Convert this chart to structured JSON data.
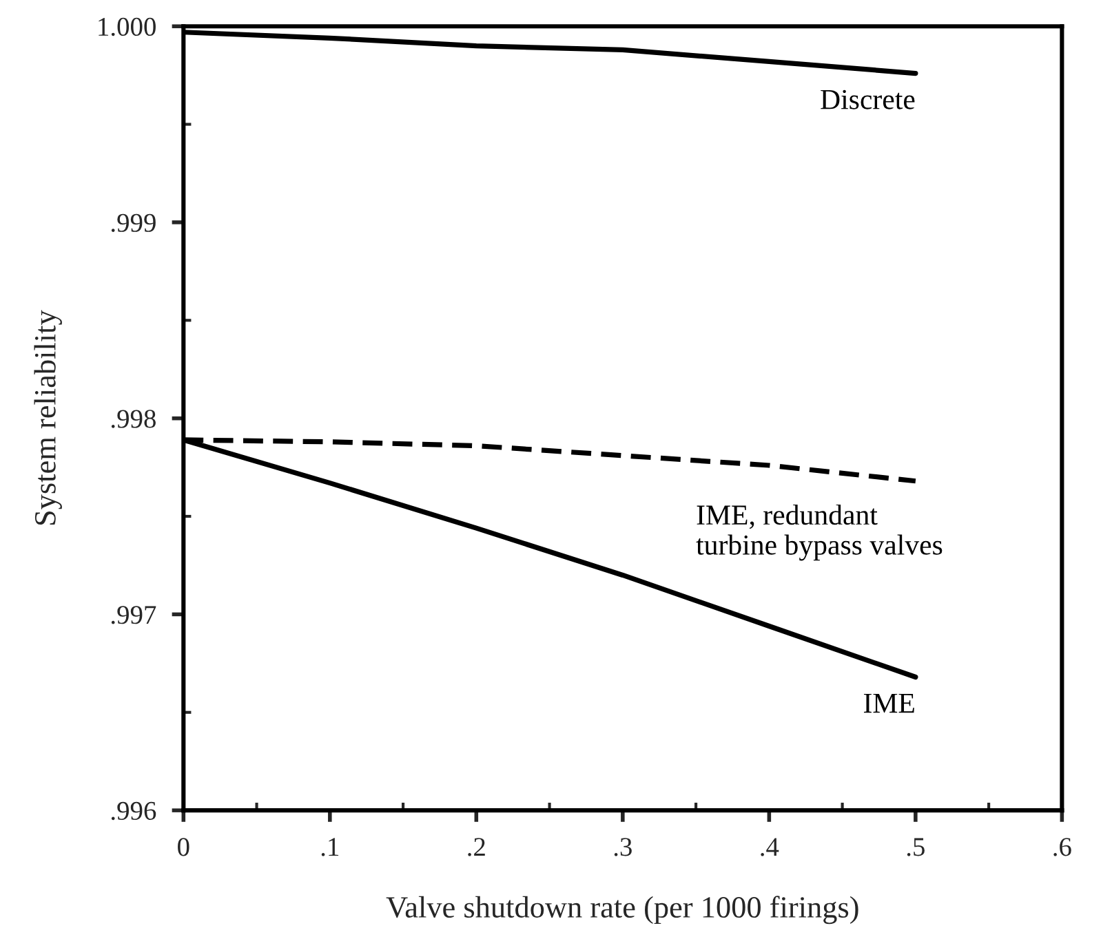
{
  "chart_data": {
    "type": "line",
    "xlabel": "Valve shutdown rate (per 1000 firings)",
    "ylabel": "System reliability",
    "x": [
      0,
      0.1,
      0.2,
      0.3,
      0.4,
      0.5
    ],
    "series": [
      {
        "name": "Discrete",
        "color": "#000000",
        "line_style": "solid",
        "values": [
          0.99997,
          0.99994,
          0.9999,
          0.99988,
          0.99982,
          0.99976
        ]
      },
      {
        "name": "IME, redundant\nturbine bypass valves",
        "color": "#000000",
        "line_style": "dashed",
        "values": [
          0.99789,
          0.99788,
          0.99786,
          0.99781,
          0.99776,
          0.99768
        ]
      },
      {
        "name": "IME",
        "color": "#000000",
        "line_style": "solid",
        "values": [
          0.99789,
          0.99767,
          0.99744,
          0.9972,
          0.99694,
          0.99668
        ]
      }
    ],
    "xlim": [
      0,
      0.6
    ],
    "xticks": [
      0,
      {
        "value": 0.1,
        "label": ".1"
      },
      {
        "value": 0.2,
        "label": ".2"
      },
      {
        "value": 0.3,
        "label": ".3"
      },
      {
        "value": 0.4,
        "label": ".4"
      },
      {
        "value": 0.5,
        "label": ".5"
      },
      {
        "value": 0.6,
        "label": ".6"
      }
    ],
    "ylim": [
      0.996,
      1.0
    ],
    "yticks": [
      {
        "value": 0.996,
        "label": ".996"
      },
      {
        "value": 0.997,
        "label": ".997"
      },
      {
        "value": 0.998,
        "label": ".998"
      },
      {
        "value": 0.999,
        "label": ".999"
      },
      {
        "value": 1.0,
        "label": "1.000"
      }
    ],
    "grid": false,
    "legend": false,
    "marker": "none"
  }
}
